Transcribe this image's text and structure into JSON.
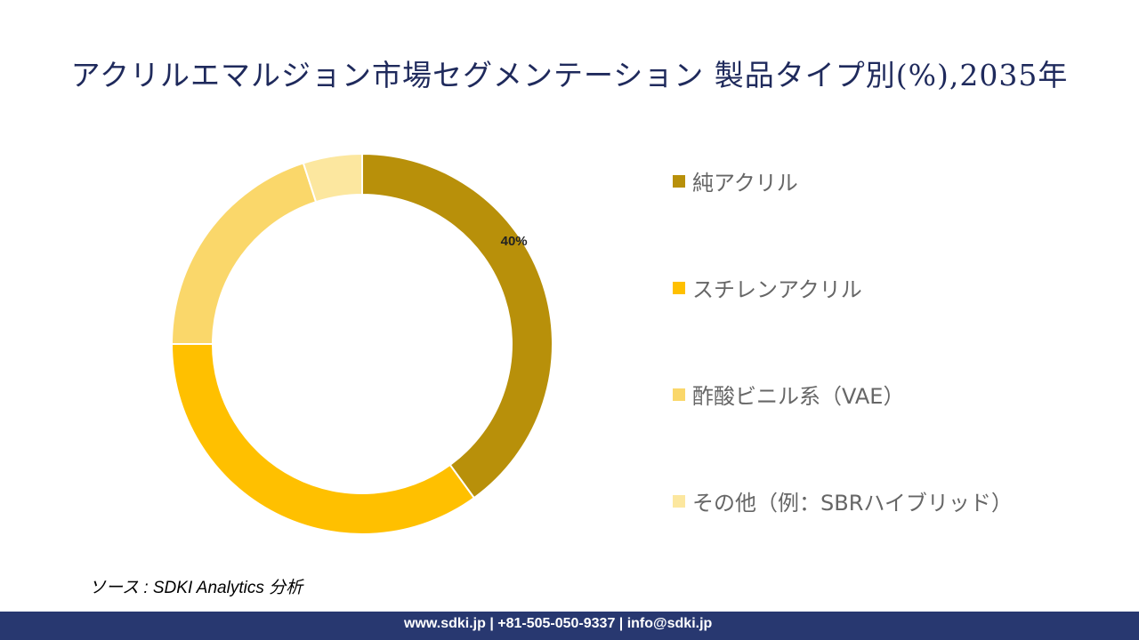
{
  "title": "アクリルエマルジョン市場セグメンテーション 製品タイプ別(%),2035年",
  "chart_data": {
    "type": "pie",
    "variant": "donut",
    "title": "アクリルエマルジョン市場セグメンテーション 製品タイプ別(%),2035年",
    "categories": [
      "純アクリル",
      "スチレンアクリル",
      "酢酸ビニル系（VAE）",
      "その他（例：SBRハイブリッド）"
    ],
    "values": [
      40,
      35,
      20,
      5
    ],
    "colors": [
      "#B8900A",
      "#FFC000",
      "#FAD76A",
      "#FCE79F"
    ],
    "data_labels": [
      "40%",
      "",
      "",
      ""
    ],
    "legend_position": "right"
  },
  "source": "ソース : SDKI Analytics 分析",
  "footer": "www.sdki.jp | +81-505-050-9337 | info@sdki.jp"
}
